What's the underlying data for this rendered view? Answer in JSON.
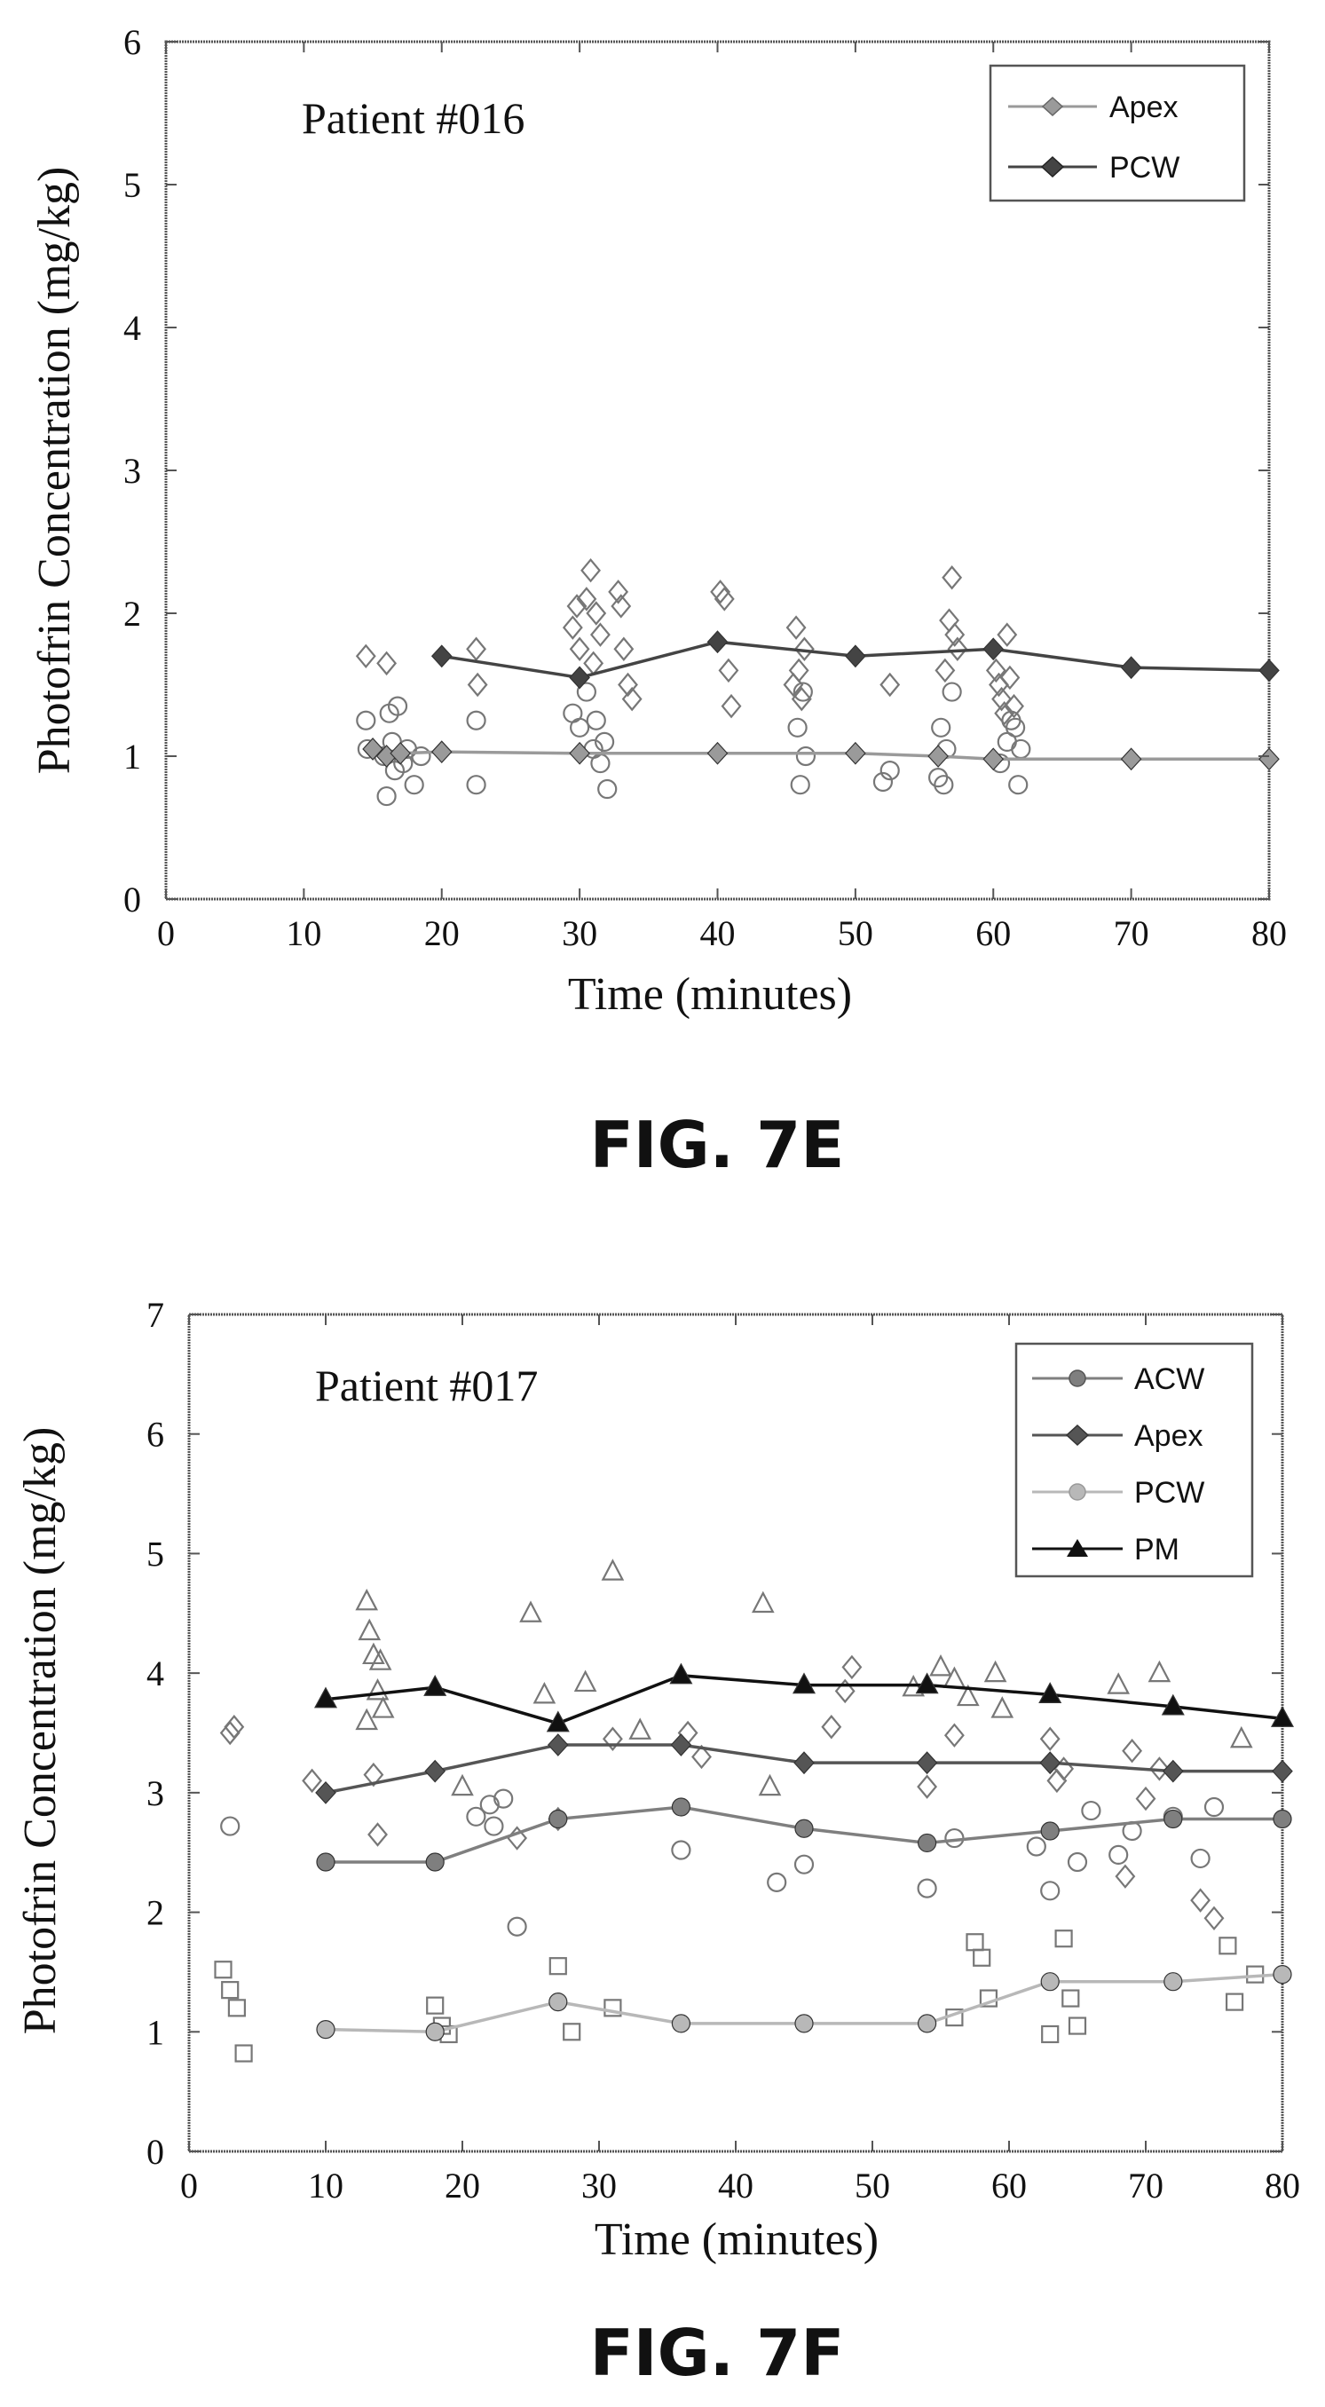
{
  "captions": {
    "fig_e": "FIG. 7E",
    "fig_f": "FIG. 7F"
  },
  "colors": {
    "axis": "#555555",
    "raw_marker": "#777777",
    "acw": "#7f7f7f",
    "apex_e": "#9a9a9a",
    "pcw_e": "#444444",
    "apex_f": "#555555",
    "pcw_f": "#b8b8b8",
    "pm": "#111111"
  },
  "chart_data": [
    {
      "id": "fig_e",
      "type": "scatter",
      "annotation": "Patient #016",
      "xlabel": "Time (minutes)",
      "ylabel": "Photofrin Concentration (mg/kg)",
      "xlim": [
        0,
        80
      ],
      "ylim": [
        0,
        6
      ],
      "xticks": [
        "0",
        "10",
        "20",
        "30",
        "40",
        "50",
        "60",
        "70",
        "80"
      ],
      "yticks": [
        "0",
        "1",
        "2",
        "3",
        "4",
        "5",
        "6"
      ],
      "grid": false,
      "legend": "top-right",
      "series": [
        {
          "name": "Apex",
          "marker": "diamond",
          "line": true,
          "color": "#9a9a9a",
          "points": [
            [
              15,
              1.05
            ],
            [
              16,
              1.0
            ],
            [
              17,
              1.02
            ],
            [
              20,
              1.03
            ],
            [
              30,
              1.02
            ],
            [
              40,
              1.02
            ],
            [
              50,
              1.02
            ],
            [
              56,
              1.0
            ],
            [
              60,
              0.98
            ],
            [
              70,
              0.98
            ],
            [
              80,
              0.98
            ]
          ]
        },
        {
          "name": "PCW",
          "marker": "diamond",
          "line": true,
          "color": "#444444",
          "points": [
            [
              20,
              1.7
            ],
            [
              30,
              1.55
            ],
            [
              40,
              1.8
            ],
            [
              50,
              1.7
            ],
            [
              60,
              1.75
            ],
            [
              70,
              1.62
            ],
            [
              80,
              1.6
            ]
          ]
        },
        {
          "name": "",
          "marker": "open-circle",
          "line": false,
          "points": [
            [
              14.5,
              1.25
            ],
            [
              14.6,
              1.05
            ],
            [
              15.8,
              1.0
            ],
            [
              16,
              0.72
            ],
            [
              16.2,
              1.3
            ],
            [
              16.4,
              1.1
            ],
            [
              16.6,
              0.9
            ],
            [
              16.8,
              1.35
            ],
            [
              17.2,
              0.95
            ],
            [
              17.5,
              1.05
            ],
            [
              18,
              0.8
            ],
            [
              18.5,
              1.0
            ],
            [
              22.5,
              0.8
            ],
            [
              22.5,
              1.25
            ],
            [
              29.5,
              1.3
            ],
            [
              30,
              1.2
            ],
            [
              30.5,
              1.45
            ],
            [
              31,
              1.05
            ],
            [
              31.2,
              1.25
            ],
            [
              31.5,
              0.95
            ],
            [
              31.8,
              1.1
            ],
            [
              32,
              0.77
            ],
            [
              45.8,
              1.2
            ],
            [
              46,
              0.8
            ],
            [
              46.2,
              1.45
            ],
            [
              46.4,
              1.0
            ],
            [
              52,
              0.82
            ],
            [
              52.5,
              0.9
            ],
            [
              56,
              0.85
            ],
            [
              56.2,
              1.2
            ],
            [
              56.4,
              0.8
            ],
            [
              56.6,
              1.05
            ],
            [
              57,
              1.45
            ],
            [
              60.5,
              0.95
            ],
            [
              61,
              1.1
            ],
            [
              61.3,
              1.25
            ],
            [
              61.6,
              1.2
            ],
            [
              61.8,
              0.8
            ],
            [
              62,
              1.05
            ]
          ]
        },
        {
          "name": "",
          "marker": "open-diamond",
          "line": false,
          "points": [
            [
              14.5,
              1.7
            ],
            [
              16,
              1.65
            ],
            [
              22.5,
              1.75
            ],
            [
              22.6,
              1.5
            ],
            [
              29.5,
              1.9
            ],
            [
              29.8,
              2.05
            ],
            [
              30,
              1.75
            ],
            [
              30.5,
              2.1
            ],
            [
              30.8,
              2.3
            ],
            [
              31,
              1.65
            ],
            [
              31.2,
              2.0
            ],
            [
              31.5,
              1.85
            ],
            [
              32.8,
              2.15
            ],
            [
              33,
              2.05
            ],
            [
              33.2,
              1.75
            ],
            [
              33.5,
              1.5
            ],
            [
              33.8,
              1.4
            ],
            [
              40.2,
              2.15
            ],
            [
              40.5,
              2.1
            ],
            [
              40.8,
              1.6
            ],
            [
              41,
              1.35
            ],
            [
              45.5,
              1.5
            ],
            [
              45.7,
              1.9
            ],
            [
              45.9,
              1.6
            ],
            [
              46.1,
              1.4
            ],
            [
              46.3,
              1.75
            ],
            [
              52.5,
              1.5
            ],
            [
              56.5,
              1.6
            ],
            [
              56.8,
              1.95
            ],
            [
              57,
              2.25
            ],
            [
              57.2,
              1.85
            ],
            [
              57.4,
              1.75
            ],
            [
              60.2,
              1.6
            ],
            [
              60.4,
              1.5
            ],
            [
              60.6,
              1.4
            ],
            [
              60.8,
              1.3
            ],
            [
              61,
              1.85
            ],
            [
              61.2,
              1.55
            ],
            [
              61.5,
              1.35
            ]
          ]
        }
      ]
    },
    {
      "id": "fig_f",
      "type": "scatter",
      "annotation": "Patient #017",
      "xlabel": "Time (minutes)",
      "ylabel": "Photofrin Concentration (mg/kg)",
      "xlim": [
        0,
        80
      ],
      "ylim": [
        0,
        7
      ],
      "xticks": [
        "0",
        "10",
        "20",
        "30",
        "40",
        "50",
        "60",
        "70",
        "80"
      ],
      "yticks": [
        "0",
        "1",
        "2",
        "3",
        "4",
        "5",
        "6",
        "7"
      ],
      "grid": false,
      "legend": "top-right",
      "series": [
        {
          "name": "ACW",
          "marker": "circle",
          "line": true,
          "color": "#7f7f7f",
          "points": [
            [
              10,
              2.42
            ],
            [
              18,
              2.42
            ],
            [
              27,
              2.78
            ],
            [
              36,
              2.88
            ],
            [
              45,
              2.7
            ],
            [
              54,
              2.58
            ],
            [
              63,
              2.68
            ],
            [
              72,
              2.78
            ],
            [
              80,
              2.78
            ]
          ]
        },
        {
          "name": "Apex",
          "marker": "diamond",
          "line": true,
          "color": "#555555",
          "points": [
            [
              10,
              3.0
            ],
            [
              18,
              3.18
            ],
            [
              27,
              3.4
            ],
            [
              36,
              3.4
            ],
            [
              45,
              3.25
            ],
            [
              54,
              3.25
            ],
            [
              63,
              3.25
            ],
            [
              72,
              3.18
            ],
            [
              80,
              3.18
            ]
          ]
        },
        {
          "name": "PCW",
          "marker": "circle",
          "line": true,
          "color": "#b8b8b8",
          "points": [
            [
              10,
              1.02
            ],
            [
              18,
              1.0
            ],
            [
              27,
              1.25
            ],
            [
              36,
              1.07
            ],
            [
              45,
              1.07
            ],
            [
              54,
              1.07
            ],
            [
              63,
              1.42
            ],
            [
              72,
              1.42
            ],
            [
              80,
              1.48
            ]
          ]
        },
        {
          "name": "PM",
          "marker": "triangle",
          "line": true,
          "color": "#111111",
          "points": [
            [
              10,
              3.78
            ],
            [
              18,
              3.88
            ],
            [
              27,
              3.58
            ],
            [
              36,
              3.98
            ],
            [
              45,
              3.9
            ],
            [
              54,
              3.9
            ],
            [
              63,
              3.82
            ],
            [
              72,
              3.72
            ],
            [
              80,
              3.62
            ]
          ]
        },
        {
          "name": "",
          "marker": "open-triangle",
          "line": false,
          "points": [
            [
              13,
              4.6
            ],
            [
              13.2,
              4.35
            ],
            [
              13.5,
              4.15
            ],
            [
              13.8,
              3.85
            ],
            [
              14,
              4.1
            ],
            [
              14.2,
              3.7
            ],
            [
              25,
              4.5
            ],
            [
              26,
              3.82
            ],
            [
              29,
              3.92
            ],
            [
              31,
              4.85
            ],
            [
              33,
              3.52
            ],
            [
              42,
              4.58
            ],
            [
              42.5,
              3.05
            ],
            [
              53,
              3.88
            ],
            [
              55,
              4.05
            ],
            [
              56,
              3.95
            ],
            [
              57,
              3.8
            ],
            [
              59,
              4.0
            ],
            [
              59.5,
              3.7
            ],
            [
              68,
              3.9
            ],
            [
              71,
              4.0
            ],
            [
              77,
              3.45
            ],
            [
              20,
              3.05
            ],
            [
              13,
              3.6
            ]
          ]
        },
        {
          "name": "",
          "marker": "open-diamond",
          "line": false,
          "points": [
            [
              3,
              3.5
            ],
            [
              3.3,
              3.55
            ],
            [
              9,
              3.1
            ],
            [
              13.5,
              3.15
            ],
            [
              13.8,
              2.65
            ],
            [
              24,
              2.62
            ],
            [
              27,
              2.78
            ],
            [
              31,
              3.45
            ],
            [
              36.5,
              3.5
            ],
            [
              37.5,
              3.3
            ],
            [
              47,
              3.55
            ],
            [
              48,
              3.85
            ],
            [
              48.5,
              4.05
            ],
            [
              54,
              3.05
            ],
            [
              56,
              3.48
            ],
            [
              63,
              3.45
            ],
            [
              63.5,
              3.1
            ],
            [
              64,
              3.2
            ],
            [
              69,
              3.35
            ],
            [
              70,
              2.95
            ],
            [
              71,
              3.2
            ],
            [
              74,
              2.1
            ],
            [
              75,
              1.95
            ],
            [
              68.5,
              2.3
            ]
          ]
        },
        {
          "name": "",
          "marker": "open-circle",
          "line": false,
          "points": [
            [
              3,
              2.72
            ],
            [
              21,
              2.8
            ],
            [
              22,
              2.9
            ],
            [
              22.3,
              2.72
            ],
            [
              23,
              2.95
            ],
            [
              24,
              1.88
            ],
            [
              36,
              2.52
            ],
            [
              43,
              2.25
            ],
            [
              45,
              2.4
            ],
            [
              54,
              2.2
            ],
            [
              56,
              2.62
            ],
            [
              62,
              2.55
            ],
            [
              63,
              2.18
            ],
            [
              65,
              2.42
            ],
            [
              66,
              2.85
            ],
            [
              68,
              2.48
            ],
            [
              69,
              2.68
            ],
            [
              74,
              2.45
            ],
            [
              75,
              2.88
            ],
            [
              72,
              2.8
            ]
          ]
        },
        {
          "name": "",
          "marker": "open-square",
          "line": false,
          "points": [
            [
              2.5,
              1.52
            ],
            [
              3,
              1.35
            ],
            [
              3.5,
              1.2
            ],
            [
              4,
              0.82
            ],
            [
              18,
              1.22
            ],
            [
              18.5,
              1.05
            ],
            [
              19,
              0.98
            ],
            [
              27,
              1.55
            ],
            [
              28,
              1.0
            ],
            [
              31,
              1.2
            ],
            [
              56,
              1.12
            ],
            [
              57.5,
              1.75
            ],
            [
              58,
              1.62
            ],
            [
              58.5,
              1.28
            ],
            [
              63,
              0.98
            ],
            [
              64,
              1.78
            ],
            [
              64.5,
              1.28
            ],
            [
              65,
              1.05
            ],
            [
              76,
              1.72
            ],
            [
              76.5,
              1.25
            ],
            [
              78,
              1.48
            ]
          ]
        }
      ]
    }
  ]
}
